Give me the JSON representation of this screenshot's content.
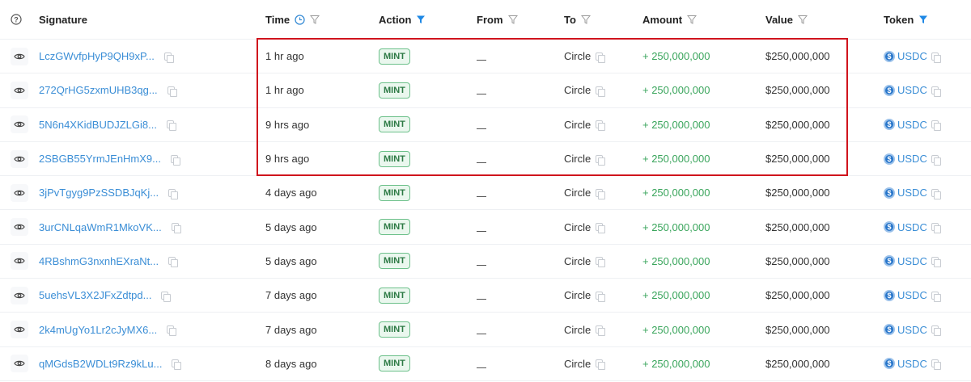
{
  "headers": {
    "signature": "Signature",
    "time": "Time",
    "action": "Action",
    "from": "From",
    "to": "To",
    "amount": "Amount",
    "value": "Value",
    "token": "Token"
  },
  "active_filters": [
    "Action",
    "Token"
  ],
  "accent": "#3b8ed6",
  "highlight_color": "#d0141d",
  "rows": [
    {
      "sig": "LczGWvfpHyP9QH9xP...",
      "time": "1 hr ago",
      "action": "MINT",
      "from": "—",
      "to": "Circle",
      "amount": "+ 250,000,000",
      "value": "$250,000,000",
      "token": "USDC"
    },
    {
      "sig": "272QrHG5zxmUHB3qg...",
      "time": "1 hr ago",
      "action": "MINT",
      "from": "—",
      "to": "Circle",
      "amount": "+ 250,000,000",
      "value": "$250,000,000",
      "token": "USDC"
    },
    {
      "sig": "5N6n4XKidBUDJZLGi8...",
      "time": "9 hrs ago",
      "action": "MINT",
      "from": "—",
      "to": "Circle",
      "amount": "+ 250,000,000",
      "value": "$250,000,000",
      "token": "USDC"
    },
    {
      "sig": "2SBGB55YrmJEnHmX9...",
      "time": "9 hrs ago",
      "action": "MINT",
      "from": "—",
      "to": "Circle",
      "amount": "+ 250,000,000",
      "value": "$250,000,000",
      "token": "USDC"
    },
    {
      "sig": "3jPvTgyg9PzSSDBJqKj...",
      "time": "4 days ago",
      "action": "MINT",
      "from": "—",
      "to": "Circle",
      "amount": "+ 250,000,000",
      "value": "$250,000,000",
      "token": "USDC"
    },
    {
      "sig": "3urCNLqaWmR1MkoVK...",
      "time": "5 days ago",
      "action": "MINT",
      "from": "—",
      "to": "Circle",
      "amount": "+ 250,000,000",
      "value": "$250,000,000",
      "token": "USDC"
    },
    {
      "sig": "4RBshmG3nxnhEXraNt...",
      "time": "5 days ago",
      "action": "MINT",
      "from": "—",
      "to": "Circle",
      "amount": "+ 250,000,000",
      "value": "$250,000,000",
      "token": "USDC"
    },
    {
      "sig": "5uehsVL3X2JFxZdtpd...",
      "time": "7 days ago",
      "action": "MINT",
      "from": "—",
      "to": "Circle",
      "amount": "+ 250,000,000",
      "value": "$250,000,000",
      "token": "USDC"
    },
    {
      "sig": "2k4mUgYo1Lr2cJyMX6...",
      "time": "7 days ago",
      "action": "MINT",
      "from": "—",
      "to": "Circle",
      "amount": "+ 250,000,000",
      "value": "$250,000,000",
      "token": "USDC"
    },
    {
      "sig": "qMGdsB2WDLt9Rz9kLu...",
      "time": "8 days ago",
      "action": "MINT",
      "from": "—",
      "to": "Circle",
      "amount": "+ 250,000,000",
      "value": "$250,000,000",
      "token": "USDC"
    }
  ]
}
